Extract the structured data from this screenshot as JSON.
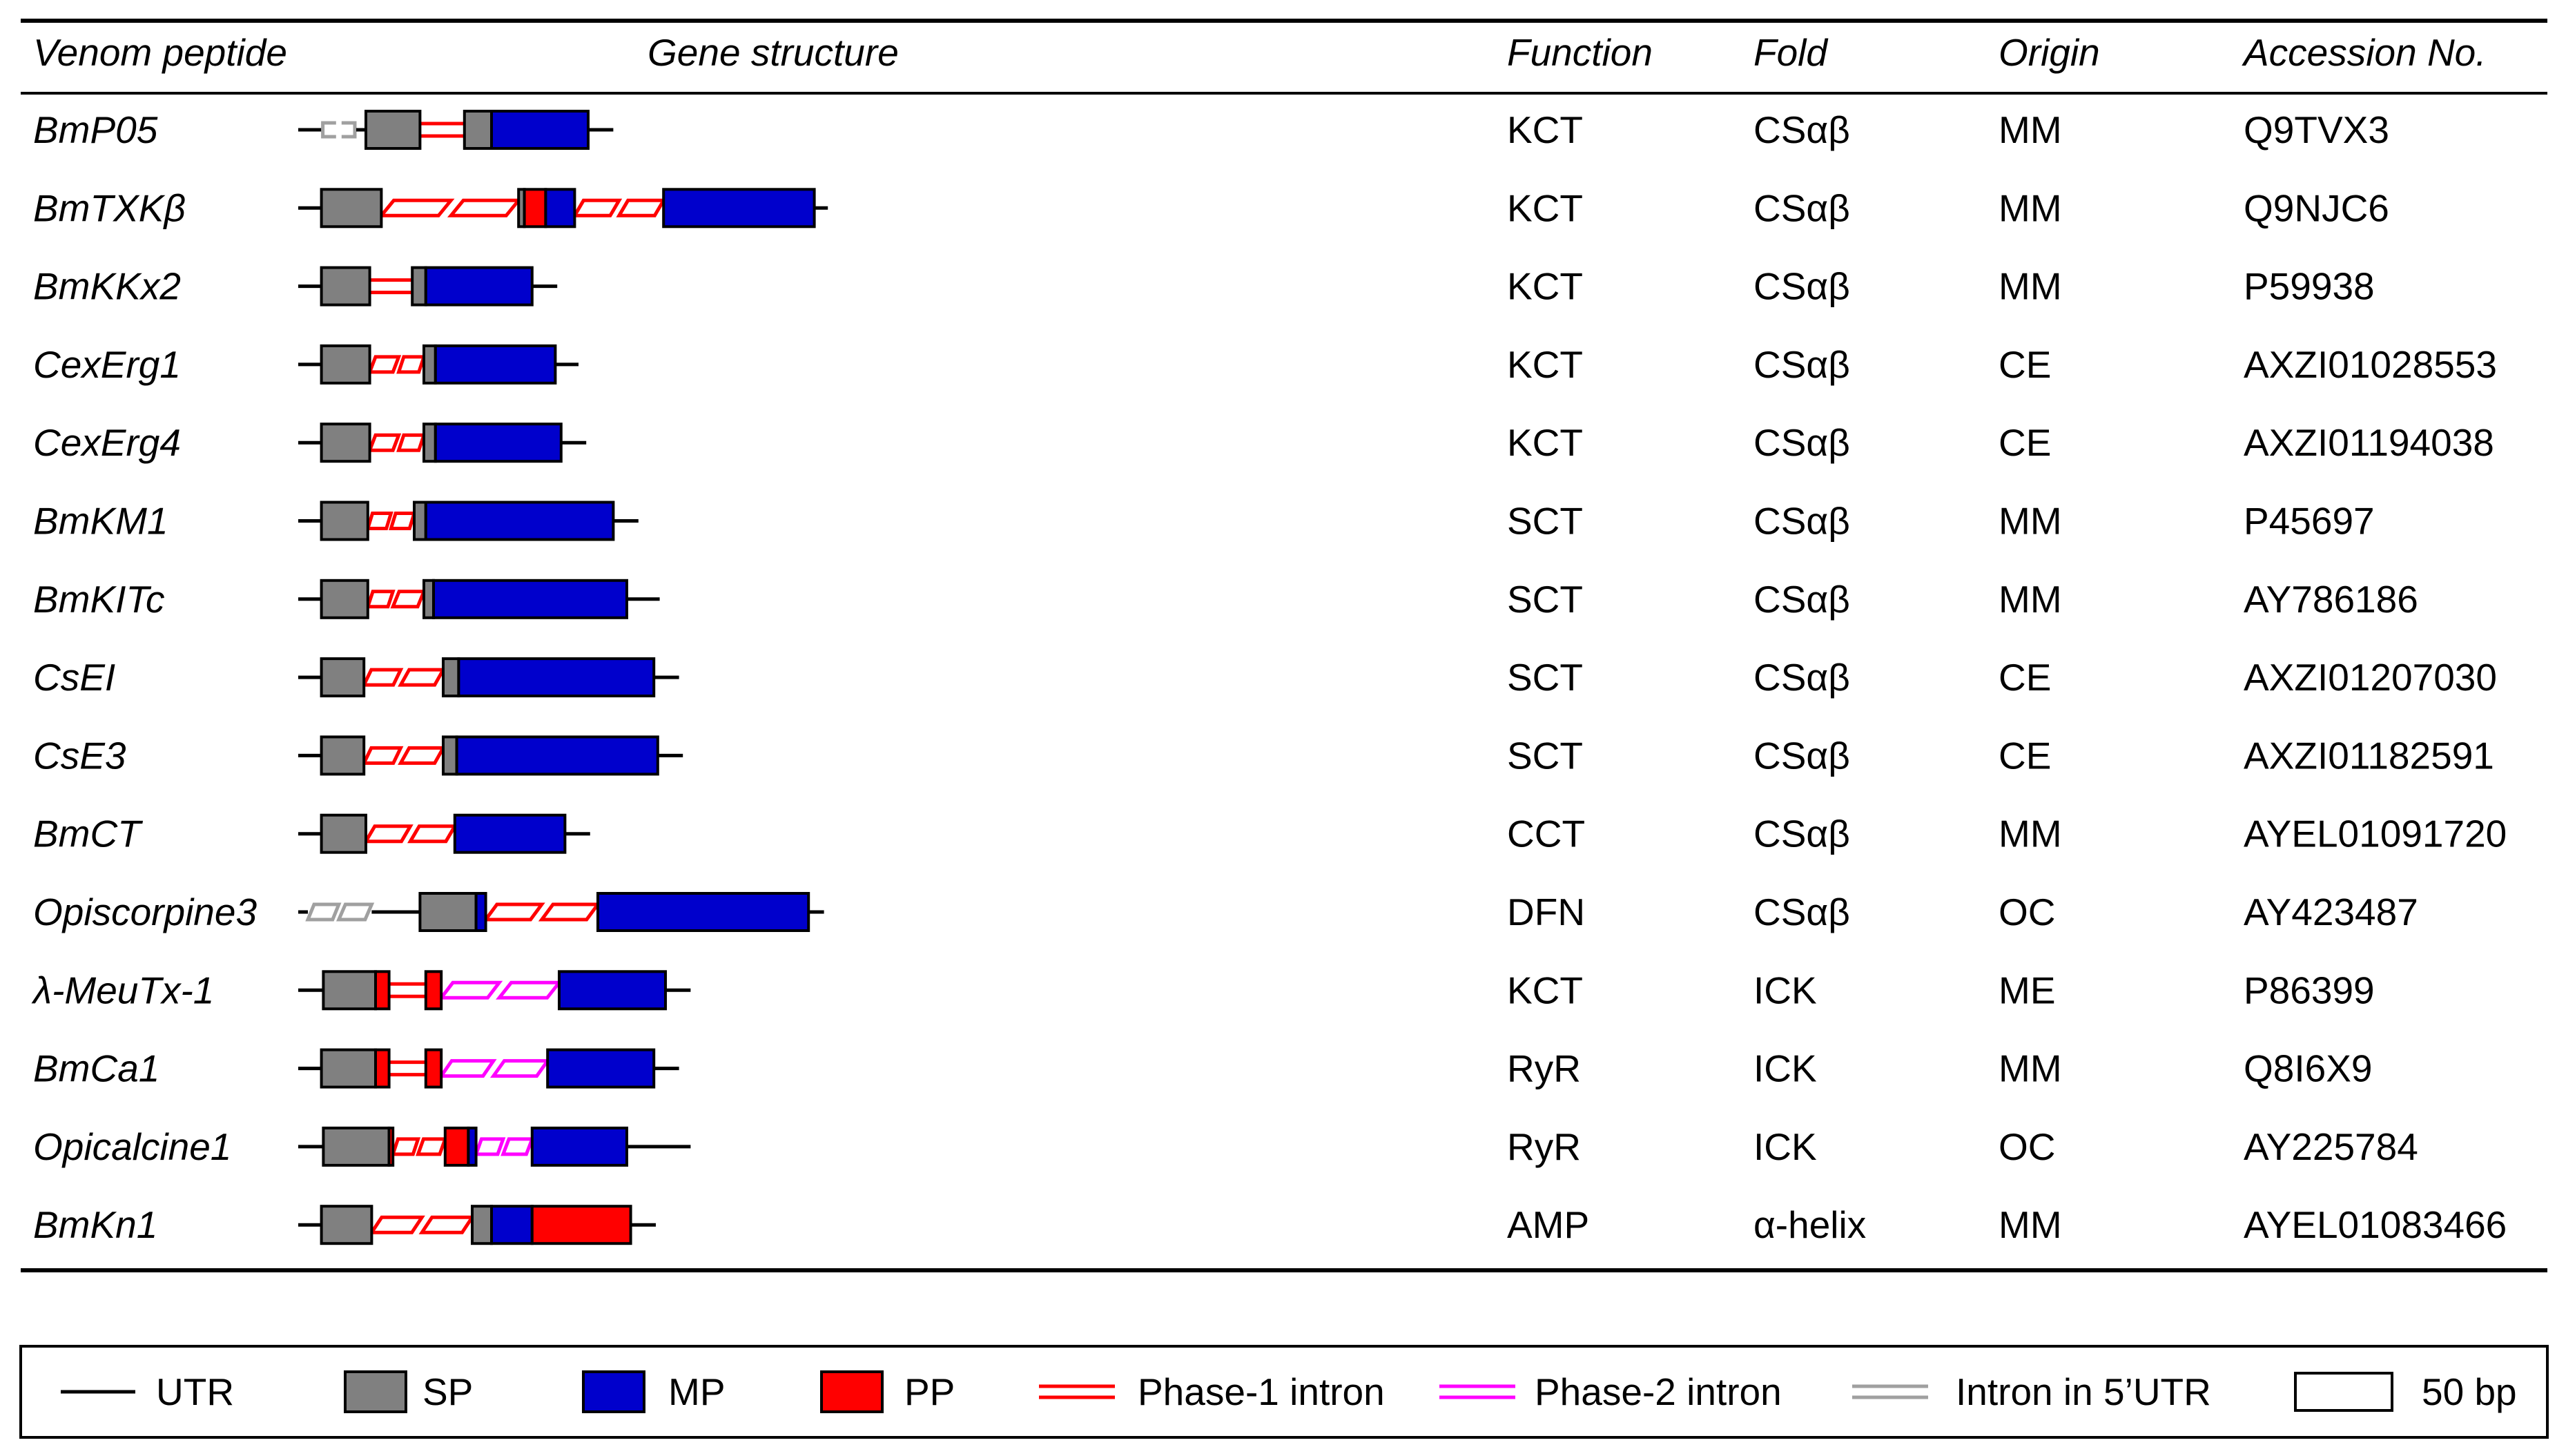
{
  "header": {
    "venom_peptide": "Venom peptide",
    "gene_structure": "Gene structure",
    "function": "Function",
    "fold": "Fold",
    "origin": "Origin",
    "accession": "Accession No."
  },
  "colors": {
    "UTR": "#000000",
    "SP": "#808080",
    "MP": "#0000cc",
    "PP": "#ff0000",
    "intron1": "#ff0000",
    "intron2": "#ff00ff",
    "intron5": "#a0a0a0"
  },
  "rows": [
    {
      "name": "BmP05",
      "function": "KCT",
      "fold": "CSαβ",
      "origin": "MM",
      "accession": "Q9TVX3",
      "structure": [
        {
          "t": "UTR",
          "u": [
            0,
            12
          ]
        },
        {
          "t": "intron5",
          "u": [
            12,
            30
          ],
          "shape": "bracket"
        },
        {
          "t": "UTR",
          "u": [
            30,
            35
          ]
        },
        {
          "t": "SP",
          "u": [
            35,
            63
          ]
        },
        {
          "t": "intron1",
          "u": [
            63,
            86
          ]
        },
        {
          "t": "SP",
          "u": [
            86,
            100
          ]
        },
        {
          "t": "MP",
          "u": [
            100,
            150
          ]
        },
        {
          "t": "UTR",
          "u": [
            150,
            163
          ]
        }
      ]
    },
    {
      "name": "BmTXKβ",
      "function": "KCT",
      "fold": "CSαβ",
      "origin": "MM",
      "accession": "Q9NJC6",
      "structure": [
        {
          "t": "UTR",
          "u": [
            0,
            12
          ]
        },
        {
          "t": "SP",
          "u": [
            12,
            43
          ]
        },
        {
          "t": "intron1",
          "u": [
            43,
            79
          ],
          "shape": "para"
        },
        {
          "t": "intron1",
          "u": [
            79,
            114
          ],
          "shape": "para"
        },
        {
          "t": "SP",
          "u": [
            114,
            117
          ]
        },
        {
          "t": "PP",
          "u": [
            117,
            128
          ]
        },
        {
          "t": "MP",
          "u": [
            128,
            143
          ]
        },
        {
          "t": "intron1",
          "u": [
            143,
            166
          ],
          "shape": "para"
        },
        {
          "t": "intron1",
          "u": [
            166,
            189
          ],
          "shape": "para"
        },
        {
          "t": "MP",
          "u": [
            189,
            267
          ]
        },
        {
          "t": "UTR",
          "u": [
            267,
            274
          ]
        }
      ]
    },
    {
      "name": "BmKKx2",
      "function": "KCT",
      "fold": "CSαβ",
      "origin": "MM",
      "accession": "P59938",
      "structure": [
        {
          "t": "UTR",
          "u": [
            0,
            12
          ]
        },
        {
          "t": "SP",
          "u": [
            12,
            37
          ]
        },
        {
          "t": "intron1",
          "u": [
            37,
            59
          ]
        },
        {
          "t": "SP",
          "u": [
            59,
            66
          ]
        },
        {
          "t": "MP",
          "u": [
            66,
            121
          ]
        },
        {
          "t": "UTR",
          "u": [
            121,
            134
          ]
        }
      ]
    },
    {
      "name": "CexErg1",
      "function": "KCT",
      "fold": "CSαβ",
      "origin": "CE",
      "accession": "AXZI01028553",
      "structure": [
        {
          "t": "UTR",
          "u": [
            0,
            12
          ]
        },
        {
          "t": "SP",
          "u": [
            12,
            37
          ]
        },
        {
          "t": "intron1",
          "u": [
            37,
            52
          ],
          "shape": "para"
        },
        {
          "t": "intron1",
          "u": [
            52,
            65
          ],
          "shape": "para"
        },
        {
          "t": "SP",
          "u": [
            65,
            71
          ]
        },
        {
          "t": "MP",
          "u": [
            71,
            133
          ]
        },
        {
          "t": "UTR",
          "u": [
            133,
            145
          ]
        }
      ]
    },
    {
      "name": "CexErg4",
      "function": "KCT",
      "fold": "CSαβ",
      "origin": "CE",
      "accession": "AXZI01194038",
      "structure": [
        {
          "t": "UTR",
          "u": [
            0,
            12
          ]
        },
        {
          "t": "SP",
          "u": [
            12,
            37
          ]
        },
        {
          "t": "intron1",
          "u": [
            37,
            52
          ],
          "shape": "para"
        },
        {
          "t": "intron1",
          "u": [
            52,
            65
          ],
          "shape": "para"
        },
        {
          "t": "SP",
          "u": [
            65,
            71
          ]
        },
        {
          "t": "MP",
          "u": [
            71,
            136
          ]
        },
        {
          "t": "UTR",
          "u": [
            136,
            149
          ]
        }
      ]
    },
    {
      "name": "BmKM1",
      "function": "SCT",
      "fold": "CSαβ",
      "origin": "MM",
      "accession": "P45697",
      "structure": [
        {
          "t": "UTR",
          "u": [
            0,
            12
          ]
        },
        {
          "t": "SP",
          "u": [
            12,
            36
          ]
        },
        {
          "t": "intron1",
          "u": [
            36,
            48
          ],
          "shape": "para"
        },
        {
          "t": "intron1",
          "u": [
            48,
            60
          ],
          "shape": "para"
        },
        {
          "t": "SP",
          "u": [
            60,
            66
          ]
        },
        {
          "t": "MP",
          "u": [
            66,
            163
          ]
        },
        {
          "t": "UTR",
          "u": [
            163,
            176
          ]
        }
      ]
    },
    {
      "name": "BmKITc",
      "function": "SCT",
      "fold": "CSαβ",
      "origin": "MM",
      "accession": "AY786186",
      "structure": [
        {
          "t": "UTR",
          "u": [
            0,
            12
          ]
        },
        {
          "t": "SP",
          "u": [
            12,
            36
          ]
        },
        {
          "t": "intron1",
          "u": [
            36,
            49
          ],
          "shape": "para"
        },
        {
          "t": "intron1",
          "u": [
            49,
            65
          ],
          "shape": "para"
        },
        {
          "t": "SP",
          "u": [
            65,
            70
          ]
        },
        {
          "t": "MP",
          "u": [
            70,
            170
          ]
        },
        {
          "t": "UTR",
          "u": [
            170,
            187
          ]
        }
      ]
    },
    {
      "name": "CsEI",
      "function": "SCT",
      "fold": "CSαβ",
      "origin": "CE",
      "accession": "AXZI01207030",
      "structure": [
        {
          "t": "UTR",
          "u": [
            0,
            12
          ]
        },
        {
          "t": "SP",
          "u": [
            12,
            34
          ]
        },
        {
          "t": "intron1",
          "u": [
            34,
            53
          ],
          "shape": "para"
        },
        {
          "t": "intron1",
          "u": [
            53,
            75
          ],
          "shape": "para"
        },
        {
          "t": "SP",
          "u": [
            75,
            83
          ]
        },
        {
          "t": "MP",
          "u": [
            83,
            184
          ]
        },
        {
          "t": "UTR",
          "u": [
            184,
            197
          ]
        }
      ]
    },
    {
      "name": "CsE3",
      "function": "SCT",
      "fold": "CSαβ",
      "origin": "CE",
      "accession": "AXZI01182591",
      "structure": [
        {
          "t": "UTR",
          "u": [
            0,
            12
          ]
        },
        {
          "t": "SP",
          "u": [
            12,
            34
          ]
        },
        {
          "t": "intron1",
          "u": [
            34,
            53
          ],
          "shape": "para"
        },
        {
          "t": "intron1",
          "u": [
            53,
            75
          ],
          "shape": "para"
        },
        {
          "t": "SP",
          "u": [
            75,
            82
          ]
        },
        {
          "t": "MP",
          "u": [
            82,
            186
          ]
        },
        {
          "t": "UTR",
          "u": [
            186,
            199
          ]
        }
      ]
    },
    {
      "name": "BmCT",
      "function": "CCT",
      "fold": "CSαβ",
      "origin": "MM",
      "accession": "AYEL01091720",
      "structure": [
        {
          "t": "UTR",
          "u": [
            0,
            12
          ]
        },
        {
          "t": "SP",
          "u": [
            12,
            35
          ]
        },
        {
          "t": "intron1",
          "u": [
            35,
            58
          ],
          "shape": "para"
        },
        {
          "t": "intron1",
          "u": [
            58,
            81
          ],
          "shape": "para"
        },
        {
          "t": "MP",
          "u": [
            81,
            138
          ]
        },
        {
          "t": "UTR",
          "u": [
            138,
            151
          ]
        }
      ]
    },
    {
      "name": "Opiscorpine3",
      "function": "DFN",
      "fold": "CSαβ",
      "origin": "OC",
      "accession": "AY423487",
      "structure": [
        {
          "t": "UTR",
          "u": [
            0,
            5
          ]
        },
        {
          "t": "intron5",
          "u": [
            5,
            21
          ],
          "shape": "para"
        },
        {
          "t": "intron5",
          "u": [
            21,
            38
          ],
          "shape": "para"
        },
        {
          "t": "UTR",
          "u": [
            38,
            63
          ]
        },
        {
          "t": "SP",
          "u": [
            63,
            92
          ]
        },
        {
          "t": "MP",
          "u": [
            92,
            97
          ]
        },
        {
          "t": "intron1",
          "u": [
            97,
            126
          ],
          "shape": "para"
        },
        {
          "t": "intron1",
          "u": [
            126,
            155
          ],
          "shape": "para"
        },
        {
          "t": "MP",
          "u": [
            155,
            264
          ]
        },
        {
          "t": "UTR",
          "u": [
            264,
            272
          ]
        }
      ]
    },
    {
      "name": "λ-MeuTx-1",
      "function": "KCT",
      "fold": "ICK",
      "origin": "ME",
      "accession": "P86399",
      "structure": [
        {
          "t": "UTR",
          "u": [
            0,
            13
          ]
        },
        {
          "t": "SP",
          "u": [
            13,
            40
          ]
        },
        {
          "t": "PP",
          "u": [
            40,
            47
          ]
        },
        {
          "t": "intron1",
          "u": [
            47,
            66
          ]
        },
        {
          "t": "PP",
          "u": [
            66,
            74
          ]
        },
        {
          "t": "intron2",
          "u": [
            74,
            104
          ],
          "shape": "para"
        },
        {
          "t": "intron2",
          "u": [
            104,
            135
          ],
          "shape": "para"
        },
        {
          "t": "MP",
          "u": [
            135,
            190
          ]
        },
        {
          "t": "UTR",
          "u": [
            190,
            203
          ]
        }
      ]
    },
    {
      "name": "BmCa1",
      "function": "RyR",
      "fold": "ICK",
      "origin": "MM",
      "accession": "Q8I6X9",
      "structure": [
        {
          "t": "UTR",
          "u": [
            0,
            12
          ]
        },
        {
          "t": "SP",
          "u": [
            12,
            40
          ]
        },
        {
          "t": "PP",
          "u": [
            40,
            47
          ]
        },
        {
          "t": "intron1",
          "u": [
            47,
            66
          ]
        },
        {
          "t": "PP",
          "u": [
            66,
            74
          ]
        },
        {
          "t": "intron2",
          "u": [
            74,
            101
          ],
          "shape": "para"
        },
        {
          "t": "intron2",
          "u": [
            101,
            129
          ],
          "shape": "para"
        },
        {
          "t": "MP",
          "u": [
            129,
            184
          ]
        },
        {
          "t": "UTR",
          "u": [
            184,
            197
          ]
        }
      ]
    },
    {
      "name": "Opicalcine1",
      "function": "RyR",
      "fold": "ICK",
      "origin": "OC",
      "accession": "AY225784",
      "structure": [
        {
          "t": "UTR",
          "u": [
            0,
            13
          ]
        },
        {
          "t": "SP",
          "u": [
            13,
            47
          ]
        },
        {
          "t": "PP",
          "u": [
            47,
            49
          ]
        },
        {
          "t": "intron1",
          "u": [
            49,
            62
          ],
          "shape": "para"
        },
        {
          "t": "intron1",
          "u": [
            62,
            76
          ],
          "shape": "para"
        },
        {
          "t": "PP",
          "u": [
            76,
            88
          ]
        },
        {
          "t": "MP",
          "u": [
            88,
            92
          ]
        },
        {
          "t": "intron2",
          "u": [
            92,
            106
          ],
          "shape": "para"
        },
        {
          "t": "intron2",
          "u": [
            106,
            121
          ],
          "shape": "para"
        },
        {
          "t": "MP",
          "u": [
            121,
            170
          ]
        },
        {
          "t": "UTR",
          "u": [
            170,
            203
          ]
        }
      ]
    },
    {
      "name": "BmKn1",
      "function": "AMP",
      "fold": "α-helix",
      "origin": "MM",
      "accession": "AYEL01083466",
      "structure": [
        {
          "t": "UTR",
          "u": [
            0,
            12
          ]
        },
        {
          "t": "SP",
          "u": [
            12,
            38
          ]
        },
        {
          "t": "intron1",
          "u": [
            38,
            64
          ],
          "shape": "para"
        },
        {
          "t": "intron1",
          "u": [
            64,
            90
          ],
          "shape": "para"
        },
        {
          "t": "SP",
          "u": [
            90,
            100
          ]
        },
        {
          "t": "MP",
          "u": [
            100,
            121
          ]
        },
        {
          "t": "PP",
          "u": [
            121,
            172
          ]
        },
        {
          "t": "UTR",
          "u": [
            172,
            185
          ]
        }
      ]
    }
  ],
  "legend": [
    {
      "type": "UTR",
      "label": "UTR"
    },
    {
      "type": "SP",
      "label": "SP"
    },
    {
      "type": "MP",
      "label": "MP"
    },
    {
      "type": "PP",
      "label": "PP"
    },
    {
      "type": "intron1",
      "label": "Phase-1 intron"
    },
    {
      "type": "intron2",
      "label": "Phase-2 intron"
    },
    {
      "type": "intron5",
      "label": "Intron in 5’UTR"
    },
    {
      "type": "scale",
      "label": "50 bp"
    }
  ]
}
